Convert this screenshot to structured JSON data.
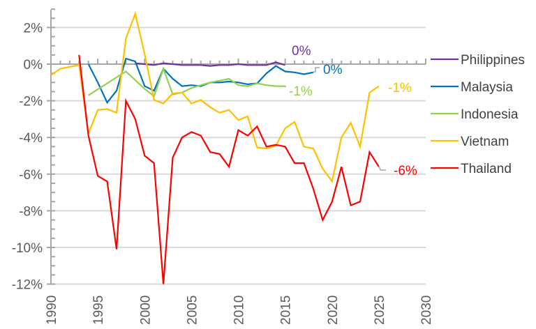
{
  "chart_data": {
    "type": "line",
    "title": "",
    "xlabel": "",
    "ylabel": "",
    "xlim": [
      1990,
      2030
    ],
    "ylim": [
      -12,
      3
    ],
    "x_ticks": [
      "1990",
      "1995",
      "2000",
      "2005",
      "2010",
      "2015",
      "2020",
      "2025",
      "2030"
    ],
    "x_tick_values": [
      1990,
      1995,
      2000,
      2005,
      2010,
      2015,
      2020,
      2025,
      2030
    ],
    "y_ticks": [
      "2%",
      "0%",
      "-2%",
      "-4%",
      "-6%",
      "-8%",
      "-10%",
      "-12%"
    ],
    "y_tick_values": [
      2,
      0,
      -2,
      -4,
      -6,
      -8,
      -10,
      -12
    ],
    "grid": "horizontal",
    "legend_position": "right",
    "series": [
      {
        "name": "Philippines",
        "color": "#7030A0",
        "end_label": "0%",
        "x": [
          1999,
          2000,
          2001,
          2002,
          2003,
          2004,
          2005,
          2006,
          2007,
          2008,
          2009,
          2010,
          2011,
          2012,
          2013,
          2014,
          2015
        ],
        "values": [
          0.05,
          0.0,
          -0.05,
          0.05,
          0.0,
          -0.05,
          -0.05,
          -0.05,
          -0.1,
          -0.05,
          -0.05,
          0.0,
          -0.05,
          -0.05,
          -0.05,
          0.1,
          -0.05
        ]
      },
      {
        "name": "Malaysia",
        "color": "#0070C0",
        "end_label": "0%",
        "x": [
          1994,
          1995,
          1996,
          1997,
          1998,
          1999,
          2000,
          2001,
          2002,
          2003,
          2004,
          2005,
          2006,
          2007,
          2008,
          2009,
          2010,
          2011,
          2012,
          2013,
          2014,
          2015,
          2016,
          2017,
          2018
        ],
        "values": [
          0.0,
          -1.0,
          -2.1,
          -1.45,
          0.3,
          0.15,
          -1.2,
          -1.45,
          -0.25,
          -0.8,
          -1.2,
          -1.15,
          -1.2,
          -1.0,
          -1.0,
          -0.95,
          -1.0,
          -1.1,
          -1.05,
          -0.5,
          -0.1,
          -0.4,
          -0.45,
          -0.55,
          -0.45
        ]
      },
      {
        "name": "Indonesia",
        "color": "#92D050",
        "end_label": "-1%",
        "x": [
          1994,
          1998,
          2000,
          2001,
          2002,
          2003,
          2004,
          2005,
          2006,
          2007,
          2008,
          2009,
          2010,
          2011,
          2012,
          2013,
          2014,
          2015
        ],
        "values": [
          -1.7,
          -0.4,
          -1.35,
          -1.75,
          -0.25,
          -1.65,
          -1.55,
          -1.3,
          -1.15,
          -1.0,
          -0.9,
          -0.8,
          -1.15,
          -1.2,
          -1.05,
          -1.15,
          -1.2,
          -1.2
        ]
      },
      {
        "name": "Vietnam",
        "color": "#FFC000",
        "end_label": "-1%",
        "x": [
          1990,
          1991,
          1992,
          1993,
          1994,
          1995,
          1996,
          1997,
          1998,
          1999,
          2000,
          2001,
          2002,
          2003,
          2004,
          2005,
          2006,
          2007,
          2008,
          2009,
          2010,
          2011,
          2012,
          2013,
          2014,
          2015,
          2016,
          2017,
          2018,
          2019,
          2020,
          2021,
          2022,
          2023,
          2024,
          2025
        ],
        "values": [
          -0.6,
          -0.25,
          -0.15,
          -0.05,
          -3.8,
          -2.5,
          -2.45,
          -2.65,
          1.4,
          2.75,
          0.55,
          -1.95,
          -2.15,
          -1.6,
          -1.55,
          -2.15,
          -1.95,
          -2.35,
          -2.65,
          -2.5,
          -3.05,
          -2.85,
          -4.55,
          -4.6,
          -4.45,
          -3.5,
          -3.15,
          -4.5,
          -4.6,
          -5.7,
          -6.4,
          -4.0,
          -3.2,
          -4.5,
          -1.55,
          -1.2
        ]
      },
      {
        "name": "Thailand",
        "color": "#FF0000",
        "end_label": "-6%",
        "x": [
          1993,
          1994,
          1995,
          1996,
          1997,
          1998,
          1999,
          2000,
          2001,
          2002,
          2003,
          2004,
          2005,
          2006,
          2007,
          2008,
          2009,
          2010,
          2011,
          2012,
          2013,
          2014,
          2015,
          2016,
          2017,
          2018,
          2019,
          2020,
          2021,
          2022,
          2023,
          2024,
          2025
        ],
        "values": [
          0.5,
          -3.9,
          -6.1,
          -6.4,
          -10.1,
          -2.0,
          -3.0,
          -5.0,
          -5.4,
          -12.0,
          -5.1,
          -4.0,
          -3.7,
          -3.9,
          -4.8,
          -4.9,
          -5.6,
          -3.6,
          -3.9,
          -3.4,
          -4.5,
          -4.4,
          -4.5,
          -5.4,
          -5.4,
          -6.8,
          -8.5,
          -7.5,
          -5.6,
          -7.7,
          -7.5,
          -4.8,
          -5.6
        ]
      }
    ]
  }
}
